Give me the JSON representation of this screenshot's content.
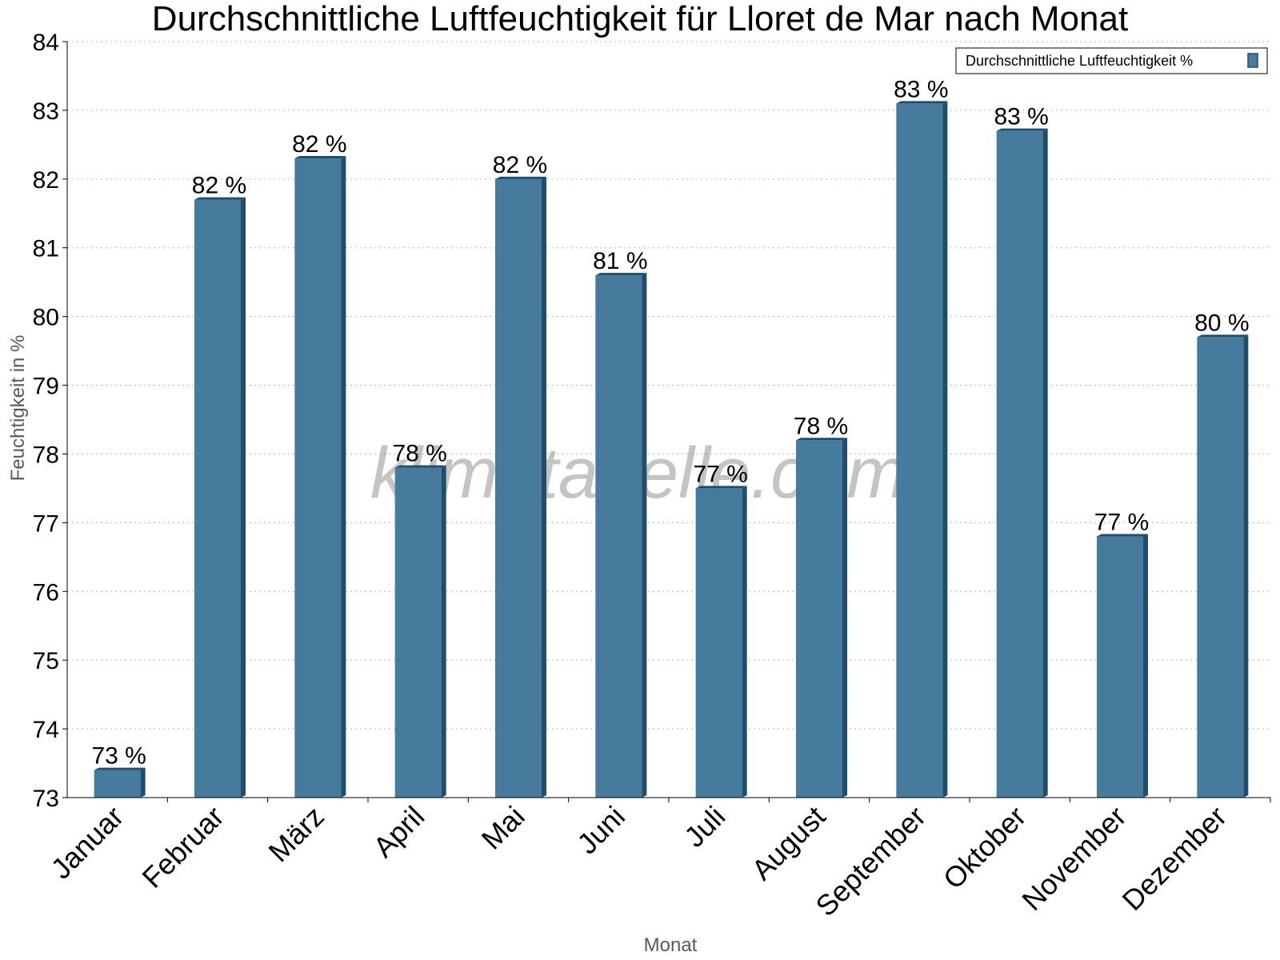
{
  "chart_data": {
    "type": "bar",
    "title": "Durchschnittliche Luftfeuchtigkeit für Lloret de Mar nach Monat",
    "xlabel": "Monat",
    "ylabel": "Feuchtigkeit in %",
    "ylim": [
      73,
      84
    ],
    "yticks": [
      "73",
      "74",
      "75",
      "76",
      "77",
      "78",
      "79",
      "80",
      "81",
      "82",
      "83",
      "84"
    ],
    "grid": true,
    "legend_position": "top-right",
    "categories": [
      "Januar",
      "Februar",
      "März",
      "April",
      "Mai",
      "Juni",
      "Juli",
      "August",
      "September",
      "Oktober",
      "November",
      "Dezember"
    ],
    "series": [
      {
        "name": "Durchschnittliche Luftfeuchtigkeit %",
        "values": [
          73.4,
          81.7,
          82.3,
          77.8,
          82.0,
          80.6,
          77.5,
          78.2,
          83.1,
          82.7,
          76.8,
          79.7
        ],
        "labels": [
          "73 %",
          "82 %",
          "82 %",
          "78 %",
          "82 %",
          "81 %",
          "77 %",
          "78 %",
          "83 %",
          "83 %",
          "77 %",
          "80 %"
        ],
        "color": "#467b9e",
        "edge_color": "#1d4e6e"
      }
    ],
    "watermark": "klimatabelle.com"
  }
}
